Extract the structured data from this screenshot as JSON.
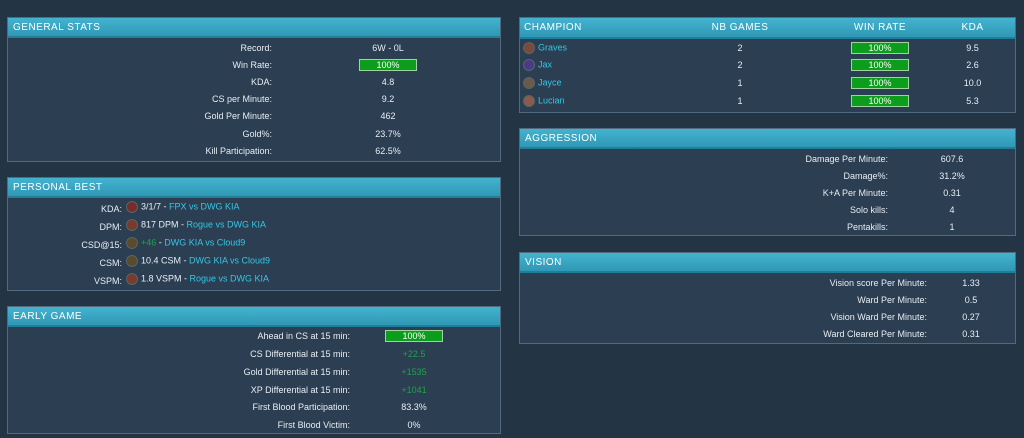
{
  "general_stats": {
    "title": "GENERAL STATS",
    "rows": [
      {
        "label": "Record:",
        "value": "6W - 0L"
      },
      {
        "label": "Win Rate:",
        "value": "100%"
      },
      {
        "label": "KDA:",
        "value": "4.8"
      },
      {
        "label": "CS per Minute:",
        "value": "9.2"
      },
      {
        "label": "Gold Per Minute:",
        "value": "462"
      },
      {
        "label": "Gold%:",
        "value": "23.7%"
      },
      {
        "label": "Kill Participation:",
        "value": "62.5%"
      }
    ]
  },
  "personal_best": {
    "title": "PERSONAL BEST",
    "rows": [
      {
        "label": "KDA:",
        "stat": "3/1/7",
        "sep": " - ",
        "match": "FPX vs DWG KIA",
        "icon": "champion-portrait-icon",
        "icon_color": "#7a2b2b"
      },
      {
        "label": "DPM:",
        "stat": "817 DPM",
        "sep": " - ",
        "match": "Rogue vs DWG KIA",
        "icon": "champion-portrait-icon",
        "icon_color": "#7a3b2b"
      },
      {
        "label": "CSD@15:",
        "stat": "+46",
        "sep": " - ",
        "match": "DWG KIA vs Cloud9",
        "icon": "champion-portrait-icon",
        "icon_color": "#5b4a2b"
      },
      {
        "label": "CSM:",
        "stat": "10.4 CSM",
        "sep": " - ",
        "match": "DWG KIA vs Cloud9",
        "icon": "champion-portrait-icon",
        "icon_color": "#5b4a2b"
      },
      {
        "label": "VSPM:",
        "stat": "1.8 VSPM",
        "sep": " - ",
        "match": "Rogue vs DWG KIA",
        "icon": "champion-portrait-icon",
        "icon_color": "#7a3b2b"
      }
    ]
  },
  "early_game": {
    "title": "EARLY GAME",
    "rows": [
      {
        "label": "Ahead in CS at 15 min:",
        "value": "100%"
      },
      {
        "label": "CS Differential at 15 min:",
        "value": "+22.5"
      },
      {
        "label": "Gold Differential at 15 min:",
        "value": "+1535"
      },
      {
        "label": "XP Differential at 15 min:",
        "value": "+1041"
      },
      {
        "label": "First Blood Participation:",
        "value": "83.3%"
      },
      {
        "label": "First Blood Victim:",
        "value": "0%"
      }
    ]
  },
  "champions": {
    "headers": [
      "CHAMPION",
      "NB GAMES",
      "WIN RATE",
      "KDA"
    ],
    "rows": [
      {
        "name": "Graves",
        "games": "2",
        "win_rate": "100%",
        "kda": "9.5",
        "icon_color": "#7a4a3a"
      },
      {
        "name": "Jax",
        "games": "2",
        "win_rate": "100%",
        "kda": "2.6",
        "icon_color": "#4a3a8a"
      },
      {
        "name": "Jayce",
        "games": "1",
        "win_rate": "100%",
        "kda": "10.0",
        "icon_color": "#6a5a4a"
      },
      {
        "name": "Lucian",
        "games": "1",
        "win_rate": "100%",
        "kda": "5.3",
        "icon_color": "#8a5a4a"
      }
    ]
  },
  "aggression": {
    "title": "AGGRESSION",
    "rows": [
      {
        "label": "Damage Per Minute:",
        "value": "607.6"
      },
      {
        "label": "Damage%:",
        "value": "31.2%"
      },
      {
        "label": "K+A Per Minute:",
        "value": "0.31"
      },
      {
        "label": "Solo kills:",
        "value": "4"
      },
      {
        "label": "Pentakills:",
        "value": "1"
      }
    ]
  },
  "vision": {
    "title": "VISION",
    "rows": [
      {
        "label": "Vision score Per Minute:",
        "value": "1.33"
      },
      {
        "label": "Ward Per Minute:",
        "value": "0.5"
      },
      {
        "label": "Vision Ward Per Minute:",
        "value": "0.27"
      },
      {
        "label": "Ward Cleared Per Minute:",
        "value": "0.31"
      }
    ]
  },
  "colors": {
    "background": "#233445",
    "panel": "#2b3e52",
    "header": "#3aa9c6",
    "win_rate_fill": "#0d9d1c",
    "positive": "#1aa64a",
    "link": "#35c7e6"
  }
}
